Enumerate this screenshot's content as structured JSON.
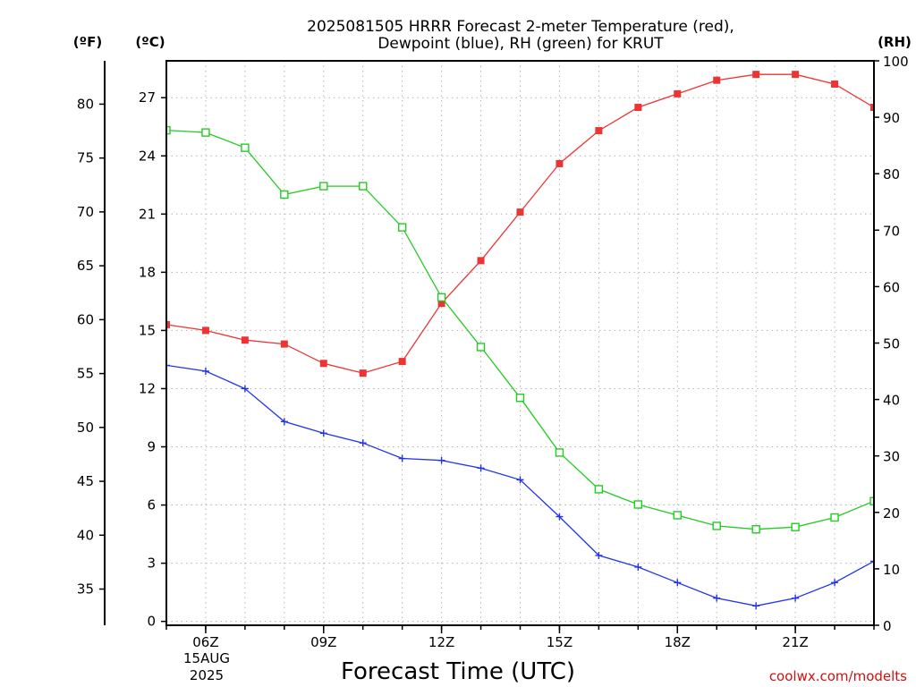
{
  "chart_data": {
    "type": "line",
    "title_line1": "2025081505 HRRR Forecast 2-meter Temperature (red),",
    "title_line2": "Dewpoint (blue), RH (green) for KRUT",
    "xlabel": "Forecast Time (UTC)",
    "credit": "coolwx.com/modelts",
    "x_date_lines": [
      "15AUG",
      "2025"
    ],
    "x_hours": [
      5,
      6,
      7,
      8,
      9,
      10,
      11,
      12,
      13,
      14,
      15,
      16,
      17,
      18,
      19,
      20,
      21,
      22,
      23
    ],
    "x_tick_labels": [
      {
        "hour": 6,
        "label": "06Z"
      },
      {
        "hour": 9,
        "label": "09Z"
      },
      {
        "hour": 12,
        "label": "12Z"
      },
      {
        "hour": 15,
        "label": "15Z"
      },
      {
        "hour": 18,
        "label": "18Z"
      },
      {
        "hour": 21,
        "label": "21Z"
      }
    ],
    "xlim": [
      5,
      23
    ],
    "axes": {
      "celsius": {
        "unit_label": "(ºC)",
        "lim": [
          -0.2,
          28.9
        ],
        "ticks": [
          0,
          3,
          6,
          9,
          12,
          15,
          18,
          21,
          24,
          27
        ]
      },
      "fahrenheit": {
        "unit_label": "(ºF)",
        "ticks": [
          35,
          40,
          45,
          50,
          55,
          60,
          65,
          70,
          75,
          80
        ]
      },
      "rh": {
        "unit_label": "(RH)",
        "lim": [
          0,
          100
        ],
        "ticks": [
          0,
          10,
          20,
          30,
          40,
          50,
          60,
          70,
          80,
          90,
          100
        ]
      }
    },
    "grid": true,
    "series": [
      {
        "key": "temperature",
        "axis": "celsius",
        "color": "#ee3333",
        "marker": "filled-square",
        "values": [
          15.3,
          15.0,
          14.5,
          14.3,
          13.3,
          12.8,
          13.4,
          16.4,
          18.6,
          21.1,
          23.6,
          25.3,
          26.5,
          27.2,
          27.9,
          28.2,
          28.2,
          27.7,
          26.5
        ]
      },
      {
        "key": "dewpoint",
        "axis": "celsius",
        "color": "#2233ee",
        "marker": "plus",
        "values": [
          13.2,
          12.9,
          12.0,
          10.3,
          9.7,
          9.2,
          8.4,
          8.3,
          7.9,
          7.3,
          5.4,
          3.4,
          2.8,
          2.0,
          1.2,
          0.8,
          1.2,
          2.0,
          3.1
        ]
      },
      {
        "key": "rh",
        "axis": "rh",
        "color": "#22cc22",
        "marker": "open-square",
        "values": [
          87.7,
          87.3,
          84.6,
          76.3,
          77.8,
          77.8,
          70.5,
          58.1,
          49.3,
          40.3,
          30.6,
          24.1,
          21.4,
          19.5,
          17.6,
          17.0,
          17.4,
          19.1,
          22.0
        ]
      }
    ]
  }
}
